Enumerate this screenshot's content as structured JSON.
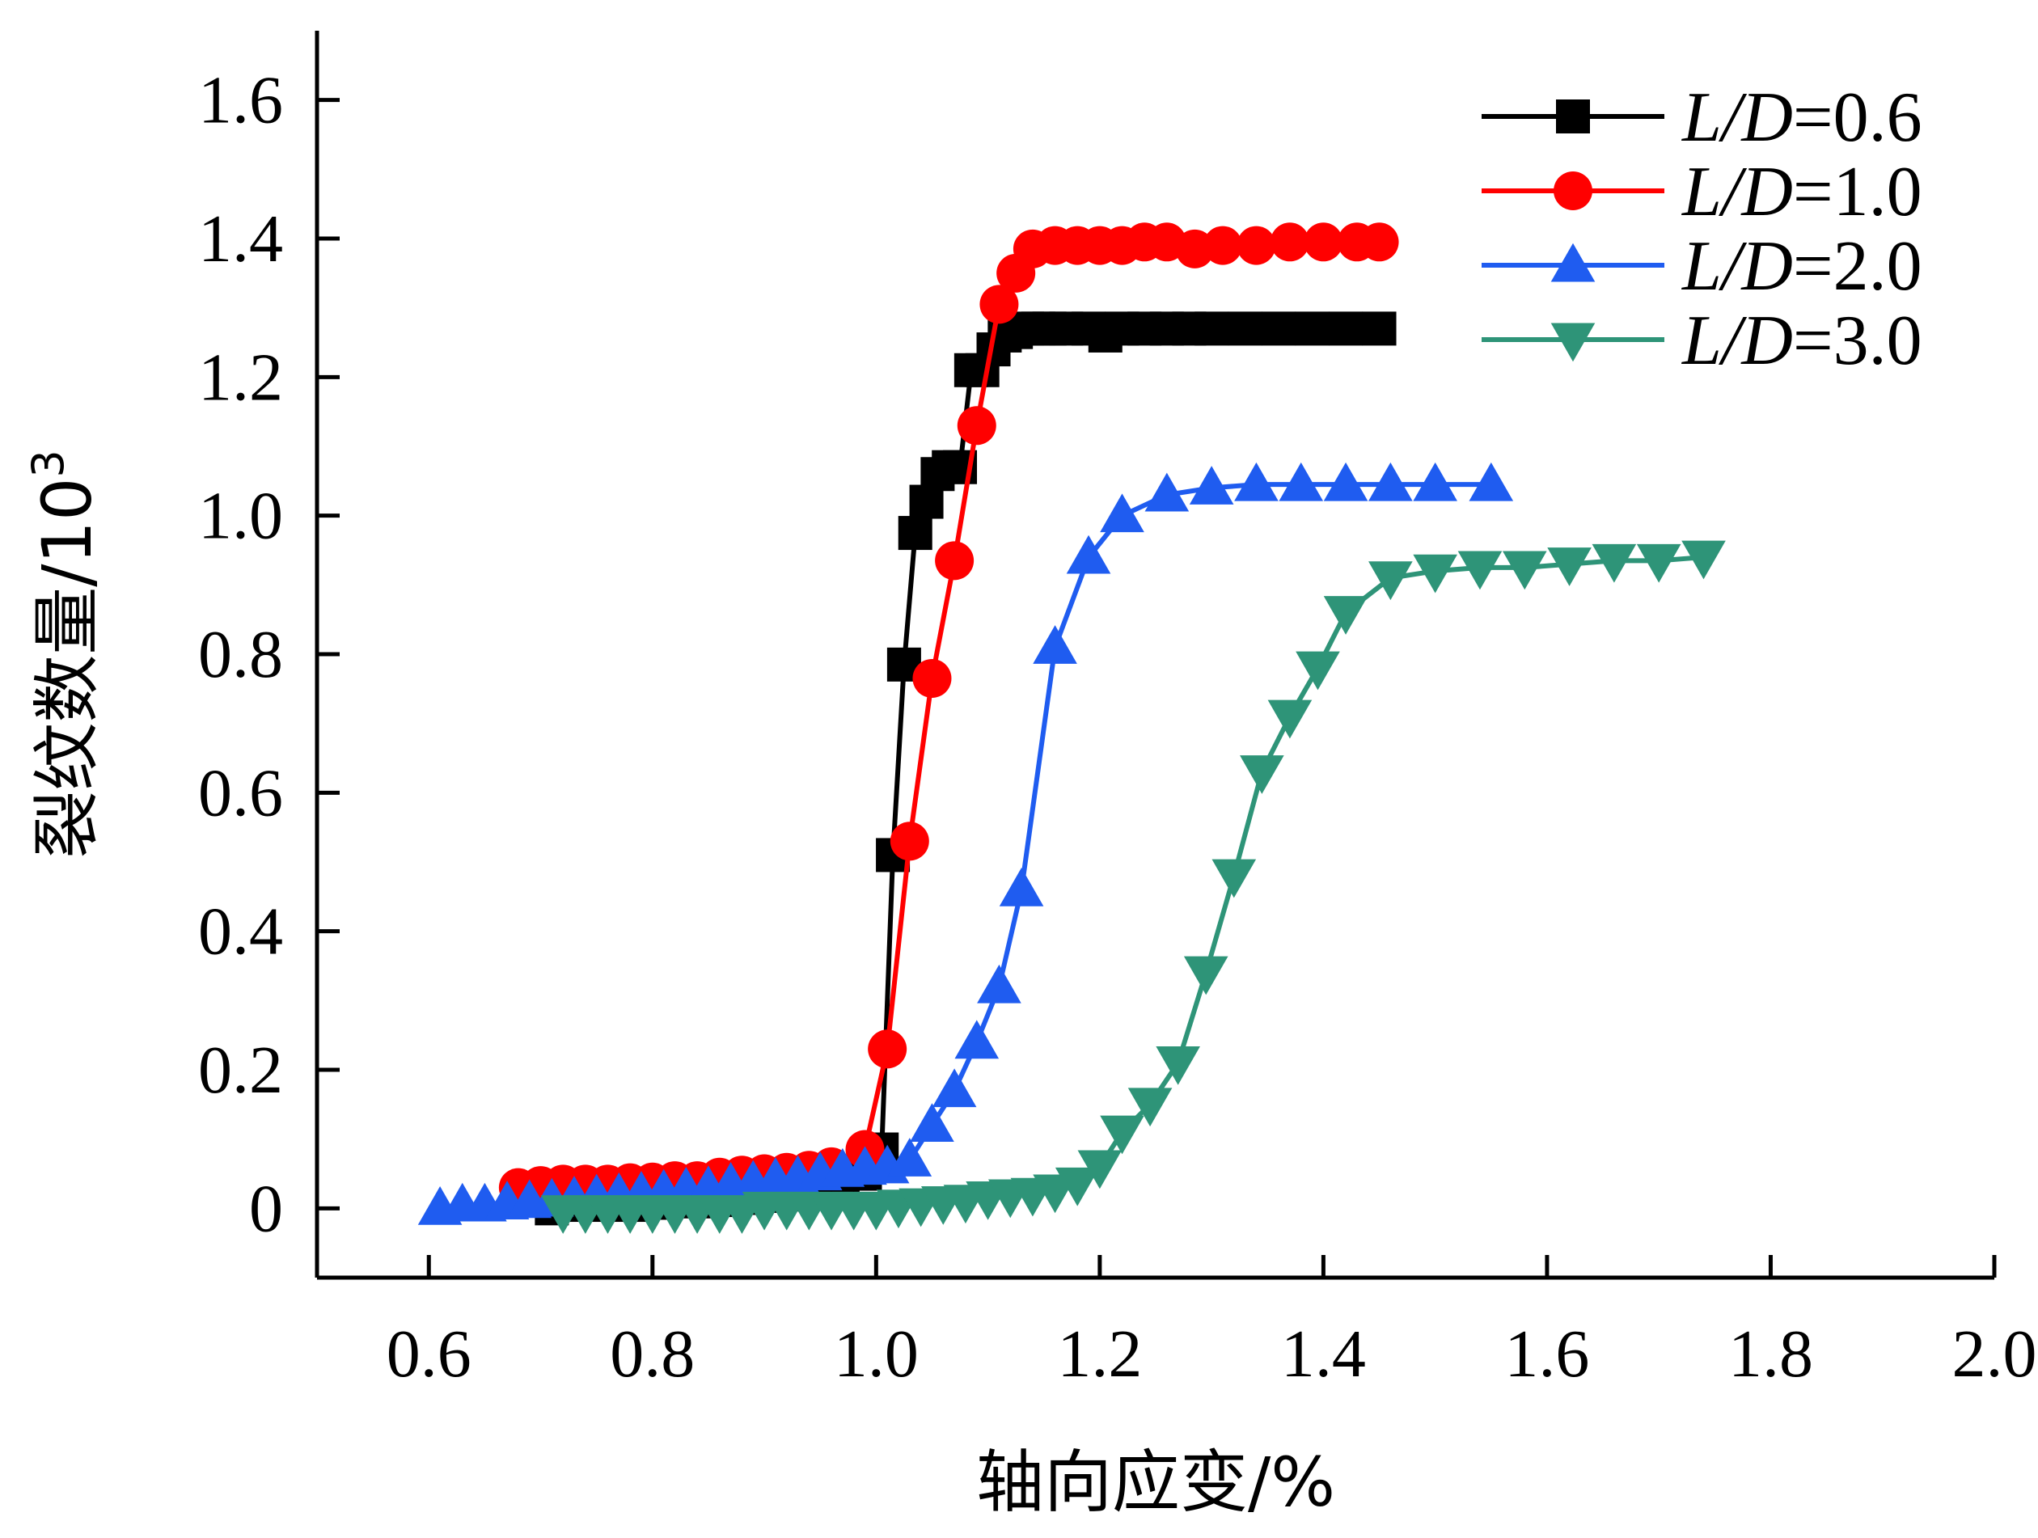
{
  "chart_data": {
    "type": "line",
    "xlabel": "轴向应变/%",
    "ylabel": "裂纹数量/10",
    "ylabel_sup": "3",
    "xlim": [
      0.5,
      2.0
    ],
    "ylim": [
      -0.1,
      1.7
    ],
    "x_ticks": [
      0.6,
      0.8,
      1.0,
      1.2,
      1.4,
      1.6,
      1.8,
      2.0
    ],
    "x_tick_labels": [
      "0.6",
      "0.8",
      "1.0",
      "1.2",
      "1.4",
      "1.6",
      "1.8",
      "2.0"
    ],
    "y_ticks": [
      0,
      0.2,
      0.4,
      0.6,
      0.8,
      1.0,
      1.2,
      1.4,
      1.6
    ],
    "y_tick_labels": [
      "0",
      "0.2",
      "0.4",
      "0.6",
      "0.8",
      "1.0",
      "1.2",
      "1.4",
      "1.6"
    ],
    "legend_position": "top-right",
    "grid": false,
    "series": [
      {
        "name": "L/D=0.6",
        "name_italic": "L/D",
        "name_rest": "=0.6",
        "color": "#000000",
        "marker": "square",
        "x": [
          0.71,
          0.73,
          0.75,
          0.77,
          0.79,
          0.81,
          0.83,
          0.85,
          0.87,
          0.89,
          0.91,
          0.93,
          0.95,
          0.97,
          0.99,
          1.005,
          1.015,
          1.025,
          1.035,
          1.045,
          1.055,
          1.065,
          1.075,
          1.085,
          1.095,
          1.105,
          1.115,
          1.125,
          1.135,
          1.145,
          1.155,
          1.17,
          1.19,
          1.205,
          1.22,
          1.24,
          1.26,
          1.28,
          1.3,
          1.33,
          1.36,
          1.39,
          1.42,
          1.45
        ],
        "y": [
          0.0,
          0.005,
          0.005,
          0.005,
          0.005,
          0.008,
          0.01,
          0.01,
          0.012,
          0.015,
          0.018,
          0.02,
          0.025,
          0.03,
          0.05,
          0.085,
          0.51,
          0.785,
          0.975,
          1.02,
          1.06,
          1.07,
          1.07,
          1.21,
          1.21,
          1.24,
          1.26,
          1.265,
          1.27,
          1.27,
          1.27,
          1.27,
          1.27,
          1.26,
          1.27,
          1.27,
          1.27,
          1.27,
          1.27,
          1.27,
          1.27,
          1.27,
          1.27,
          1.27
        ]
      },
      {
        "name": "L/D=1.0",
        "name_italic": "L/D",
        "name_rest": "=1.0",
        "color": "#ff0000",
        "marker": "circle",
        "x": [
          0.68,
          0.7,
          0.72,
          0.74,
          0.76,
          0.78,
          0.8,
          0.82,
          0.84,
          0.86,
          0.88,
          0.9,
          0.92,
          0.94,
          0.96,
          0.99,
          1.01,
          1.03,
          1.05,
          1.07,
          1.09,
          1.11,
          1.125,
          1.14,
          1.16,
          1.18,
          1.2,
          1.22,
          1.24,
          1.26,
          1.285,
          1.31,
          1.34,
          1.37,
          1.4,
          1.43,
          1.45
        ],
        "y": [
          0.03,
          0.033,
          0.035,
          0.035,
          0.035,
          0.037,
          0.038,
          0.04,
          0.04,
          0.045,
          0.048,
          0.05,
          0.052,
          0.055,
          0.06,
          0.085,
          0.23,
          0.53,
          0.765,
          0.935,
          1.13,
          1.305,
          1.35,
          1.385,
          1.39,
          1.39,
          1.39,
          1.39,
          1.395,
          1.395,
          1.385,
          1.39,
          1.39,
          1.395,
          1.395,
          1.395,
          1.395
        ]
      },
      {
        "name": "L/D=2.0",
        "name_italic": "L/D",
        "name_rest": "=2.0",
        "color": "#1f5cf0",
        "marker": "triangle-up",
        "x": [
          0.61,
          0.63,
          0.65,
          0.67,
          0.69,
          0.71,
          0.73,
          0.75,
          0.77,
          0.79,
          0.81,
          0.83,
          0.85,
          0.87,
          0.89,
          0.91,
          0.93,
          0.95,
          0.97,
          0.99,
          1.01,
          1.03,
          1.05,
          1.07,
          1.09,
          1.11,
          1.13,
          1.16,
          1.19,
          1.22,
          1.26,
          1.3,
          1.34,
          1.38,
          1.42,
          1.46,
          1.5,
          1.55
        ],
        "y": [
          0.0,
          0.005,
          0.005,
          0.008,
          0.01,
          0.012,
          0.015,
          0.018,
          0.02,
          0.022,
          0.025,
          0.028,
          0.03,
          0.035,
          0.038,
          0.042,
          0.045,
          0.05,
          0.055,
          0.058,
          0.06,
          0.07,
          0.12,
          0.17,
          0.24,
          0.32,
          0.46,
          0.81,
          0.94,
          1.0,
          1.03,
          1.04,
          1.045,
          1.045,
          1.045,
          1.045,
          1.045,
          1.045
        ]
      },
      {
        "name": "L/D=3.0",
        "name_italic": "L/D",
        "name_rest": "=3.0",
        "color": "#2e9478",
        "marker": "triangle-down",
        "x": [
          0.72,
          0.74,
          0.76,
          0.78,
          0.8,
          0.82,
          0.84,
          0.86,
          0.88,
          0.9,
          0.92,
          0.94,
          0.96,
          0.98,
          1.0,
          1.02,
          1.04,
          1.06,
          1.08,
          1.1,
          1.12,
          1.14,
          1.16,
          1.18,
          1.2,
          1.22,
          1.245,
          1.27,
          1.295,
          1.32,
          1.345,
          1.37,
          1.395,
          1.42,
          1.46,
          1.5,
          1.54,
          1.58,
          1.62,
          1.66,
          1.7,
          1.74
        ],
        "y": [
          -0.005,
          -0.005,
          -0.005,
          -0.005,
          -0.005,
          -0.005,
          -0.005,
          -0.005,
          -0.005,
          0.0,
          0.0,
          0.0,
          0.0,
          0.0,
          0.0,
          0.003,
          0.005,
          0.008,
          0.01,
          0.015,
          0.018,
          0.02,
          0.025,
          0.035,
          0.06,
          0.11,
          0.15,
          0.21,
          0.34,
          0.48,
          0.63,
          0.71,
          0.78,
          0.86,
          0.91,
          0.92,
          0.925,
          0.925,
          0.93,
          0.935,
          0.935,
          0.94
        ]
      }
    ]
  }
}
